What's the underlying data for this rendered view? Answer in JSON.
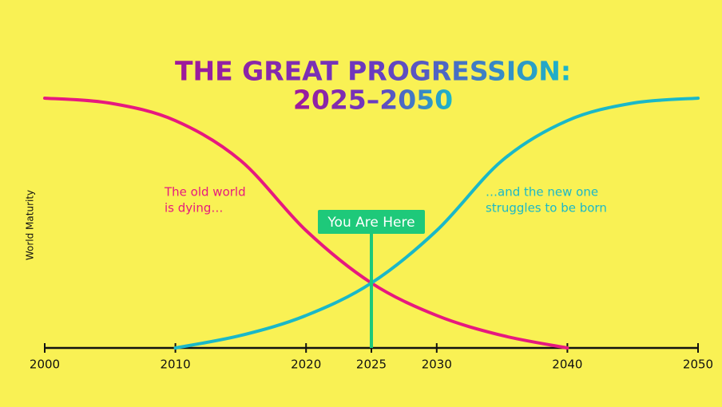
{
  "chart_data": {
    "type": "line",
    "title": "THE GREAT PROGRESSION:",
    "subtitle": "2025–2050",
    "y_label": "World Maturity",
    "x": [
      2000,
      2005,
      2010,
      2015,
      2020,
      2025,
      2030,
      2035,
      2040,
      2045,
      2050
    ],
    "xlim": [
      2000,
      2050
    ],
    "xticks": [
      2000,
      2010,
      2020,
      2025,
      2030,
      2040,
      2050
    ],
    "ylim": [
      0,
      100
    ],
    "series": [
      {
        "color": "#e6197f",
        "values": [
          100,
          98,
          91,
          75,
          47,
          26,
          13,
          5,
          0,
          null,
          null
        ]
      },
      {
        "color": "#1ab8c8",
        "values": [
          null,
          null,
          0,
          5,
          13,
          26,
          47,
          75,
          91,
          98,
          100
        ]
      }
    ],
    "annotations": [
      [
        "The old world",
        "is dying…"
      ],
      [
        "…and the new one",
        "struggles to be born"
      ]
    ],
    "marker": {
      "x": 2025,
      "label": "You Are Here",
      "color": "#1ec97a"
    }
  }
}
